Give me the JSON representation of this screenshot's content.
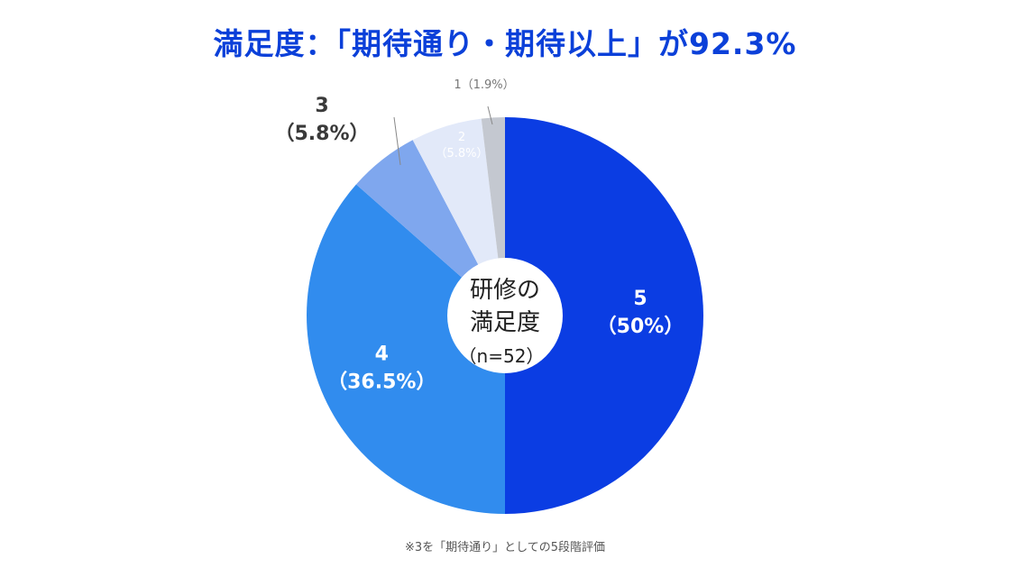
{
  "title": "満足度：「期待通り・期待以上」が92.3%",
  "footnote": "※3を「期待通り」としての5段階評価",
  "colors": {
    "title": "#0b40d9",
    "slice_5": "#0b3de3",
    "slice_4": "#318cee",
    "slice_3": "#7fa7ee",
    "slice_2": "#e2e9f9",
    "slice_1": "#c4c8d0"
  },
  "chart_data": {
    "type": "pie",
    "variant": "donut",
    "center_label": {
      "line1": "研修の",
      "line2": "満足度",
      "line3": "（n=52）"
    },
    "n": 52,
    "slices": [
      {
        "label": "5",
        "value": 50.0,
        "pct_label": "（50%）"
      },
      {
        "label": "4",
        "value": 36.5,
        "pct_label": "（36.5%）"
      },
      {
        "label": "3",
        "value": 5.8,
        "pct_label": "（5.8%）"
      },
      {
        "label": "2",
        "value": 5.8,
        "pct_label": "（5.8%）"
      },
      {
        "label": "1",
        "value": 1.9,
        "pct_label": "（1.9%）"
      }
    ]
  }
}
